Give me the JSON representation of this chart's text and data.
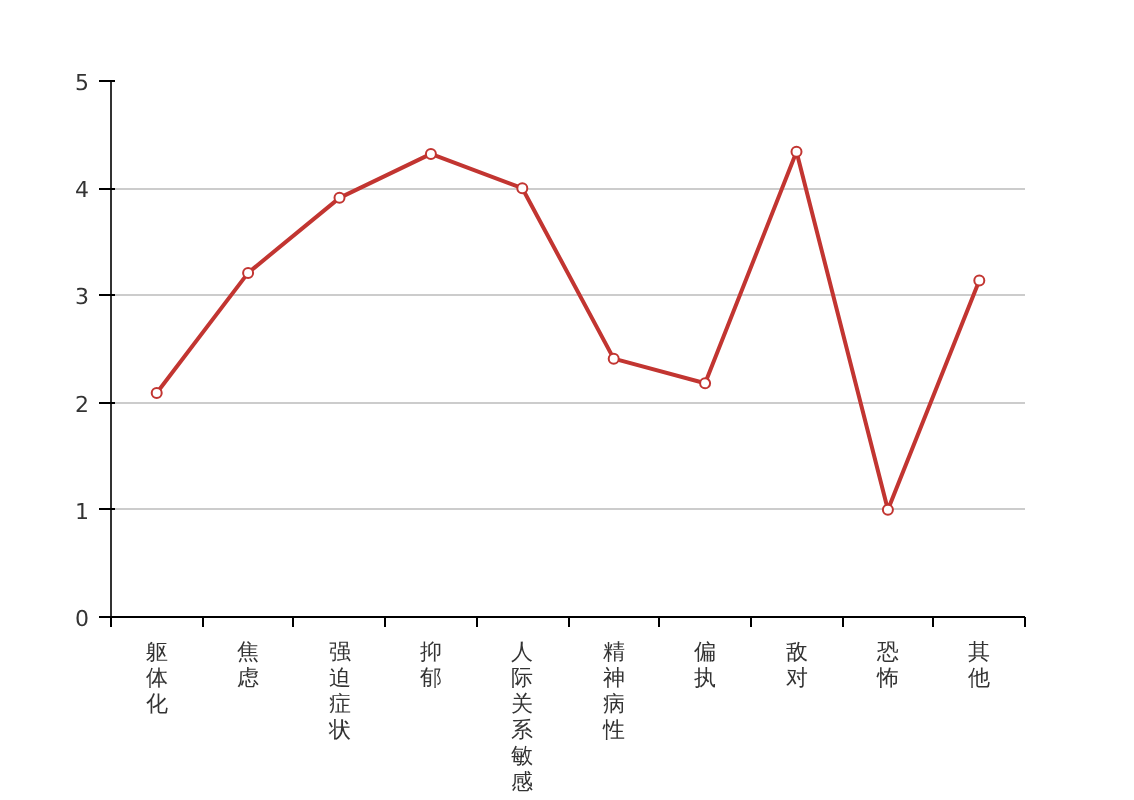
{
  "chart_data": {
    "type": "line",
    "categories": [
      "躯体化",
      "焦虑",
      "强迫症状",
      "抑郁",
      "人际关系敏感",
      "精神病性",
      "偏执",
      "敌对",
      "恐怖",
      "其他"
    ],
    "series": [
      {
        "color": "#c23531",
        "values": [
          2.09,
          3.21,
          3.91,
          4.32,
          4.0,
          2.41,
          2.18,
          4.34,
          1.0,
          3.14
        ]
      }
    ],
    "ylim": [
      0,
      5
    ],
    "yticks": [
      0,
      1,
      2,
      3,
      4,
      5
    ],
    "grid": "y",
    "marker": "circle",
    "line_style": "solid"
  }
}
